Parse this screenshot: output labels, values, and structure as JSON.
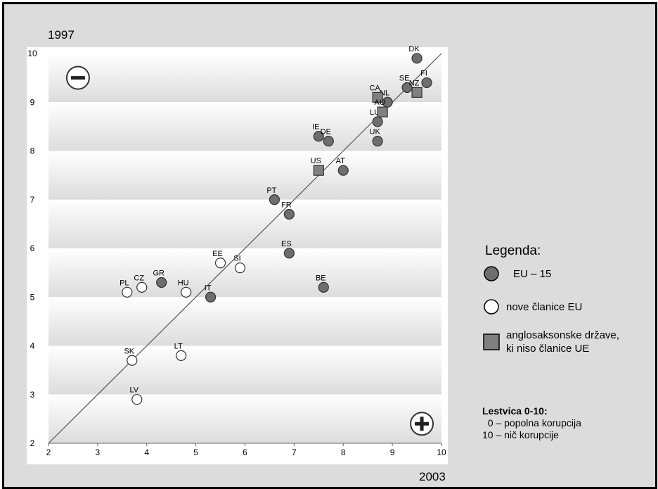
{
  "chart_data": {
    "type": "scatter",
    "x_axis_year": "2003",
    "y_axis_year": "1997",
    "xlim": [
      2,
      10
    ],
    "ylim": [
      2,
      10
    ],
    "xticks": [
      "2",
      "3",
      "4",
      "5",
      "6",
      "7",
      "8",
      "9",
      "10"
    ],
    "yticks": [
      "2",
      "3",
      "4",
      "5",
      "6",
      "7",
      "8",
      "9",
      "10"
    ],
    "diagonal": true,
    "corner_symbols": {
      "top_left": "−",
      "bottom_right": "+"
    },
    "series": [
      {
        "name": "EU – 15",
        "marker": "circle",
        "color": "#6e6e6e",
        "points": [
          {
            "label": "DK",
            "x": 9.5,
            "y": 9.9
          },
          {
            "label": "FI",
            "x": 9.7,
            "y": 9.4
          },
          {
            "label": "SE",
            "x": 9.3,
            "y": 9.3
          },
          {
            "label": "NL",
            "x": 8.9,
            "y": 9.0
          },
          {
            "label": "LU",
            "x": 8.7,
            "y": 8.6
          },
          {
            "label": "UK",
            "x": 8.7,
            "y": 8.2
          },
          {
            "label": "IE",
            "x": 7.5,
            "y": 8.3
          },
          {
            "label": "DE",
            "x": 7.7,
            "y": 8.2
          },
          {
            "label": "AT",
            "x": 8.0,
            "y": 7.6
          },
          {
            "label": "PT",
            "x": 6.6,
            "y": 7.0
          },
          {
            "label": "FR",
            "x": 6.9,
            "y": 6.7
          },
          {
            "label": "ES",
            "x": 6.9,
            "y": 5.9
          },
          {
            "label": "BE",
            "x": 7.6,
            "y": 5.2
          },
          {
            "label": "IT",
            "x": 5.3,
            "y": 5.0
          },
          {
            "label": "GR",
            "x": 4.3,
            "y": 5.3
          }
        ]
      },
      {
        "name": "nove članice EU",
        "marker": "circle-open",
        "color": "#ffffff",
        "points": [
          {
            "label": "EE",
            "x": 5.5,
            "y": 5.7
          },
          {
            "label": "SI",
            "x": 5.9,
            "y": 5.6
          },
          {
            "label": "HU",
            "x": 4.8,
            "y": 5.1
          },
          {
            "label": "CZ",
            "x": 3.9,
            "y": 5.2
          },
          {
            "label": "PL",
            "x": 3.6,
            "y": 5.1
          },
          {
            "label": "SK",
            "x": 3.7,
            "y": 3.7
          },
          {
            "label": "LT",
            "x": 4.7,
            "y": 3.8
          },
          {
            "label": "LV",
            "x": 3.8,
            "y": 2.9
          }
        ]
      },
      {
        "name": "anglosaksonske države, ki niso članice UE",
        "marker": "square",
        "color": "#808080",
        "points": [
          {
            "label": "CA",
            "x": 8.7,
            "y": 9.1
          },
          {
            "label": "NZ",
            "x": 9.5,
            "y": 9.2
          },
          {
            "label": "AU",
            "x": 8.8,
            "y": 8.8
          },
          {
            "label": "US",
            "x": 7.5,
            "y": 7.6
          }
        ]
      }
    ]
  },
  "legend": {
    "title": "Legenda:",
    "items": [
      {
        "label": "EU – 15"
      },
      {
        "label": "nove članice EU"
      },
      {
        "label_line1": "anglosaksonske države,",
        "label_line2": "ki niso članice UE"
      }
    ]
  },
  "scale": {
    "title": "Lestvica 0-10:",
    "line1": "  0 – popolna korupcija",
    "line2": "10 – nič korupcije"
  },
  "colors": {
    "frame_bg": "#dcdcdc",
    "plot_band_light": "#ffffff",
    "plot_band_dark": "#dcdcdc",
    "eu15": "#6e6e6e",
    "new_members": "#ffffff",
    "anglo": "#808080"
  }
}
